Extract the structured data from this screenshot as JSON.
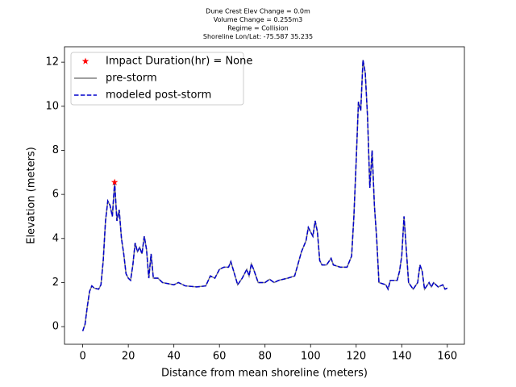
{
  "chart_data": {
    "type": "line",
    "title": [
      "Dune Crest Elev Change = 0.0m",
      "Volume Change = 0.255m3",
      "Regime = Collision",
      "Shoreline Lon/Lat: -75.587 35.235"
    ],
    "xlabel": "Distance from mean shoreline (meters)",
    "ylabel": "Elevation (meters)",
    "xlim": [
      -8,
      167.5
    ],
    "ylim": [
      -0.8,
      12.7
    ],
    "xticks": [
      0,
      20,
      40,
      60,
      80,
      100,
      120,
      140,
      160
    ],
    "yticks": [
      0,
      2,
      4,
      6,
      8,
      10,
      12
    ],
    "legend": "upper left",
    "x": [
      0,
      1,
      2,
      3,
      4,
      5,
      7,
      8,
      9,
      10,
      11,
      12,
      13,
      14,
      15,
      16,
      17,
      18,
      19,
      20,
      21,
      22,
      23,
      24,
      25,
      26,
      27,
      28,
      29,
      30,
      31,
      33,
      35,
      40,
      42,
      45,
      50,
      54,
      56,
      58,
      60,
      62,
      64,
      65,
      66,
      68,
      70,
      72,
      73,
      74,
      75,
      77,
      80,
      82,
      84,
      86,
      90,
      93,
      96,
      98,
      99,
      100,
      101,
      102,
      103,
      104,
      105,
      107,
      109,
      110,
      113,
      116,
      118,
      119,
      120,
      121,
      122,
      123,
      124,
      125,
      126,
      127,
      128,
      129,
      130,
      133,
      134,
      135,
      138,
      139,
      140,
      141,
      142,
      143,
      145,
      147,
      148,
      149,
      150,
      152,
      153,
      154,
      156,
      158,
      159,
      160
    ],
    "series": [
      {
        "name": "Impact Duration(hr) = None",
        "color": "#ff0000",
        "marker": "star",
        "x": [
          14
        ],
        "values": [
          6.55
        ]
      },
      {
        "name": "pre-storm",
        "color": "#808080",
        "dashed": false,
        "values": [
          -0.2,
          0.1,
          0.9,
          1.6,
          1.85,
          1.75,
          1.7,
          1.9,
          3.0,
          4.8,
          5.7,
          5.5,
          5.0,
          6.55,
          4.8,
          5.3,
          4.0,
          3.3,
          2.4,
          2.2,
          2.1,
          2.8,
          3.8,
          3.4,
          3.6,
          3.3,
          4.1,
          3.5,
          2.2,
          3.3,
          2.2,
          2.2,
          2.0,
          1.9,
          2.0,
          1.85,
          1.8,
          1.85,
          2.3,
          2.2,
          2.6,
          2.7,
          2.7,
          2.95,
          2.6,
          1.9,
          2.2,
          2.6,
          2.3,
          2.85,
          2.6,
          2.0,
          2.0,
          2.15,
          2.0,
          2.1,
          2.2,
          2.3,
          3.4,
          3.9,
          4.5,
          4.3,
          4.1,
          4.8,
          4.3,
          3.0,
          2.8,
          2.8,
          3.1,
          2.8,
          2.7,
          2.7,
          3.2,
          5.0,
          7.5,
          10.2,
          9.8,
          12.1,
          11.5,
          9.5,
          6.3,
          8.0,
          5.5,
          4.0,
          2.0,
          1.9,
          1.7,
          2.1,
          2.1,
          2.5,
          3.2,
          5.0,
          3.5,
          2.0,
          1.7,
          2.0,
          2.8,
          2.5,
          1.7,
          2.0,
          1.8,
          2.0,
          1.8,
          1.9,
          1.7,
          1.75
        ]
      },
      {
        "name": "modeled post-storm",
        "color": "#0000cc",
        "dashed": true,
        "values": [
          -0.2,
          0.1,
          0.9,
          1.6,
          1.85,
          1.75,
          1.7,
          1.9,
          3.0,
          4.8,
          5.7,
          5.5,
          5.0,
          6.55,
          4.8,
          5.3,
          4.0,
          3.3,
          2.4,
          2.2,
          2.1,
          2.8,
          3.8,
          3.4,
          3.6,
          3.3,
          4.1,
          3.5,
          2.2,
          3.3,
          2.2,
          2.2,
          2.0,
          1.9,
          2.0,
          1.85,
          1.8,
          1.85,
          2.3,
          2.2,
          2.6,
          2.7,
          2.7,
          2.95,
          2.6,
          1.9,
          2.2,
          2.6,
          2.3,
          2.85,
          2.6,
          2.0,
          2.0,
          2.15,
          2.0,
          2.1,
          2.2,
          2.3,
          3.4,
          3.9,
          4.5,
          4.3,
          4.1,
          4.8,
          4.3,
          3.0,
          2.8,
          2.8,
          3.1,
          2.8,
          2.7,
          2.7,
          3.2,
          5.0,
          7.5,
          10.2,
          9.8,
          12.1,
          11.5,
          9.5,
          6.3,
          8.0,
          5.5,
          4.0,
          2.0,
          1.9,
          1.7,
          2.1,
          2.1,
          2.5,
          3.2,
          5.0,
          3.5,
          2.0,
          1.7,
          2.0,
          2.8,
          2.5,
          1.7,
          2.0,
          1.8,
          2.0,
          1.8,
          1.9,
          1.7,
          1.75
        ]
      }
    ]
  }
}
